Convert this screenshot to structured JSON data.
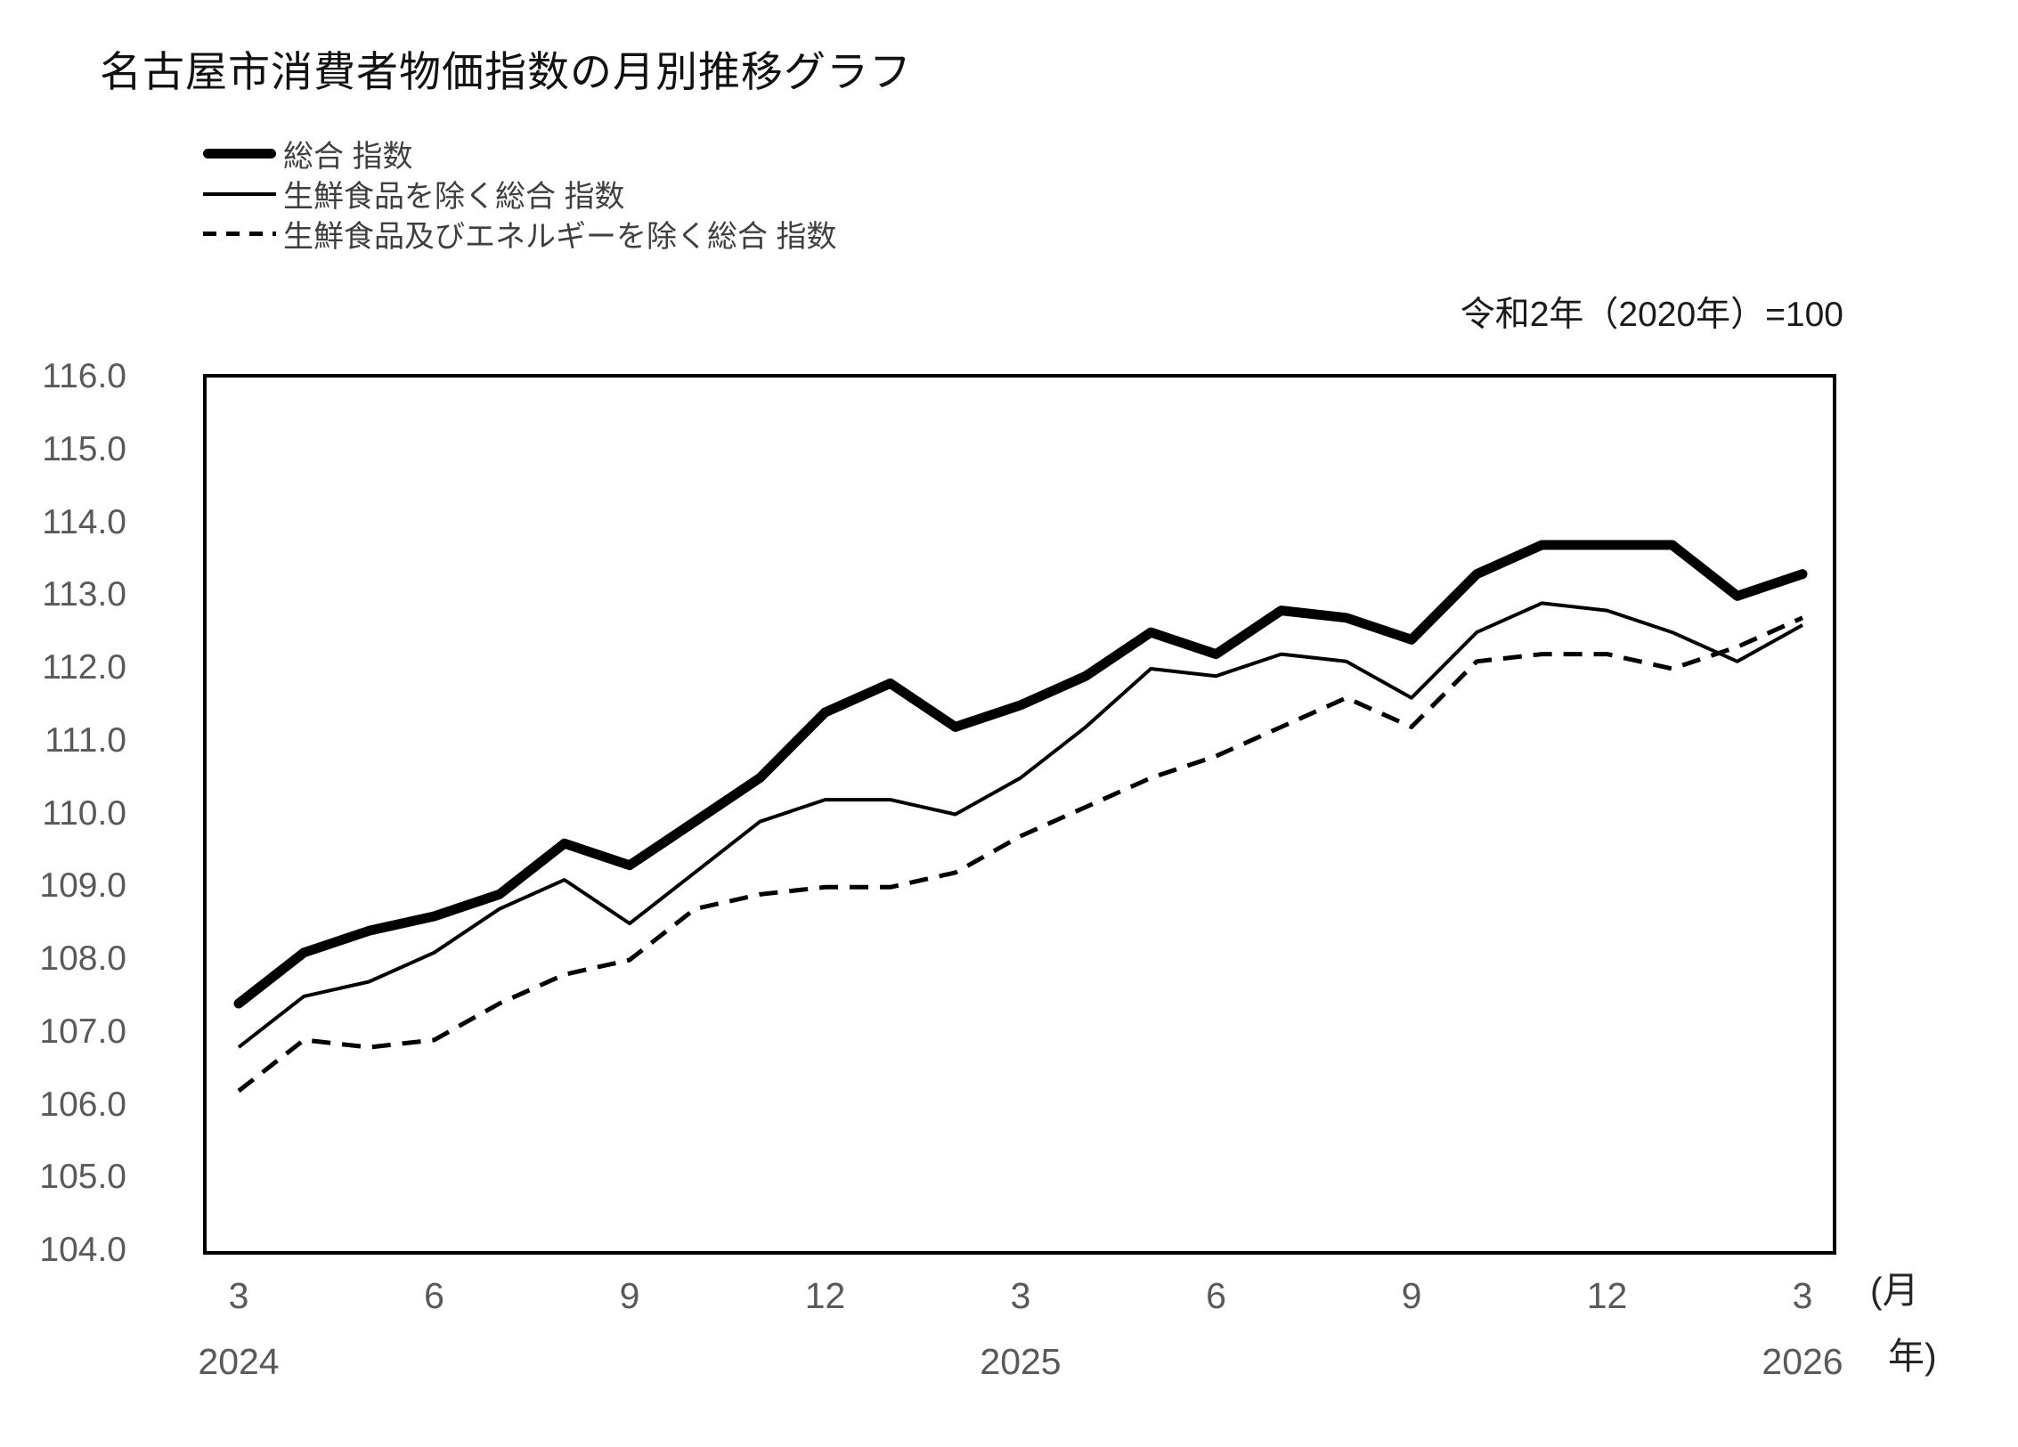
{
  "title": "名古屋市消費者物価指数の月別推移グラフ",
  "base_note": "令和2年（2020年）=100",
  "legend": {
    "items": [
      {
        "label": "総合 指数",
        "style": "thick"
      },
      {
        "label": "生鮮食品を除く総合 指数",
        "style": "thin"
      },
      {
        "label": "生鮮食品及びエネルギーを除く総合 指数",
        "style": "dashed"
      }
    ]
  },
  "axes": {
    "y_ticks": [
      "116.0",
      "115.0",
      "114.0",
      "113.0",
      "112.0",
      "111.0",
      "110.0",
      "109.0",
      "108.0",
      "107.0",
      "106.0",
      "105.0",
      "104.0"
    ],
    "x_ticks": [
      {
        "index": 0,
        "month": "3",
        "year": "2024"
      },
      {
        "index": 3,
        "month": "6",
        "year": ""
      },
      {
        "index": 6,
        "month": "9",
        "year": ""
      },
      {
        "index": 9,
        "month": "12",
        "year": ""
      },
      {
        "index": 12,
        "month": "3",
        "year": "2025"
      },
      {
        "index": 15,
        "month": "6",
        "year": ""
      },
      {
        "index": 18,
        "month": "9",
        "year": ""
      },
      {
        "index": 21,
        "month": "12",
        "year": ""
      },
      {
        "index": 24,
        "month": "3",
        "year": "2026"
      }
    ],
    "unit_month": "(月",
    "unit_year": "年)"
  },
  "chart_data": {
    "type": "line",
    "title": "名古屋市消費者物価指数の月別推移グラフ",
    "note": "令和2年（2020年）=100",
    "x_start": "2024-03",
    "x_end": "2026-03",
    "categories": [
      "3",
      "4",
      "5",
      "6",
      "7",
      "8",
      "9",
      "10",
      "11",
      "12",
      "1",
      "2",
      "3",
      "4",
      "5",
      "6",
      "7",
      "8",
      "9",
      "10",
      "11",
      "12",
      "1",
      "2",
      "3"
    ],
    "category_years": [
      "2024",
      "",
      "",
      "",
      "",
      "",
      "",
      "",
      "",
      "",
      "2025",
      "",
      "",
      "",
      "",
      "",
      "",
      "",
      "",
      "",
      "",
      "",
      "2026",
      "",
      ""
    ],
    "series": [
      {
        "name": "総合 指数",
        "line_style": "thick-solid",
        "values": [
          107.4,
          108.1,
          108.4,
          108.6,
          108.9,
          109.6,
          109.3,
          109.9,
          110.5,
          111.4,
          111.8,
          111.2,
          111.5,
          111.9,
          112.5,
          112.2,
          112.8,
          112.7,
          112.4,
          113.3,
          113.7,
          113.7,
          113.7,
          113.0,
          113.3
        ]
      },
      {
        "name": "生鮮食品を除く総合 指数",
        "line_style": "thin-solid",
        "values": [
          106.8,
          107.5,
          107.7,
          108.1,
          108.7,
          109.1,
          108.5,
          109.2,
          109.9,
          110.2,
          110.2,
          110.0,
          110.5,
          111.2,
          112.0,
          111.9,
          112.2,
          112.1,
          111.6,
          112.5,
          112.9,
          112.8,
          112.5,
          112.1,
          112.6
        ]
      },
      {
        "name": "生鮮食品及びエネルギーを除く総合 指数",
        "line_style": "dashed",
        "values": [
          106.2,
          106.9,
          106.8,
          106.9,
          107.4,
          107.8,
          108.0,
          108.7,
          108.9,
          109.0,
          109.0,
          109.2,
          109.7,
          110.1,
          110.5,
          110.8,
          111.2,
          111.6,
          111.2,
          112.1,
          112.2,
          112.2,
          112.0,
          112.3,
          112.7
        ]
      }
    ],
    "ylim": [
      104.0,
      116.0
    ],
    "ytick_step": 1.0,
    "grid": false,
    "legend_position": "top-left",
    "line_color": "#000000"
  }
}
